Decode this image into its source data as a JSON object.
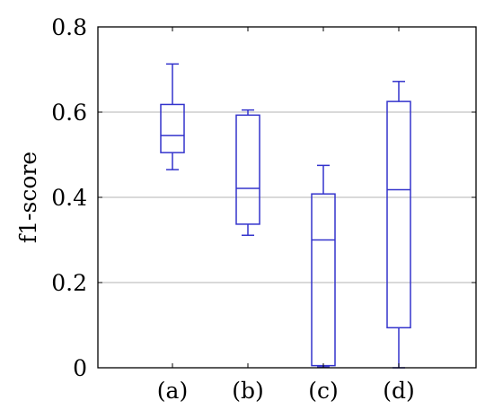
{
  "chart_data": {
    "type": "box",
    "title": "",
    "xlabel": "",
    "ylabel": "f1-score",
    "ylim": [
      0,
      0.8
    ],
    "yticks": [
      "0",
      "0.2",
      "0.4",
      "0.6",
      "0.8"
    ],
    "categories": [
      "(a)",
      "(b)",
      "(c)",
      "(d)"
    ],
    "grid": "horizontal",
    "box_color": "#3333cc",
    "boxes": [
      {
        "label": "(a)",
        "min": 0.465,
        "q1": 0.505,
        "median": 0.545,
        "q3": 0.618,
        "max": 0.713
      },
      {
        "label": "(b)",
        "min": 0.311,
        "q1": 0.337,
        "median": 0.421,
        "q3": 0.593,
        "max": 0.605
      },
      {
        "label": "(c)",
        "min": 0.002,
        "q1": 0.005,
        "median": 0.3,
        "q3": 0.408,
        "max": 0.475
      },
      {
        "label": "(d)",
        "min": 0.0,
        "q1": 0.094,
        "median": 0.418,
        "q3": 0.625,
        "max": 0.672
      }
    ]
  }
}
